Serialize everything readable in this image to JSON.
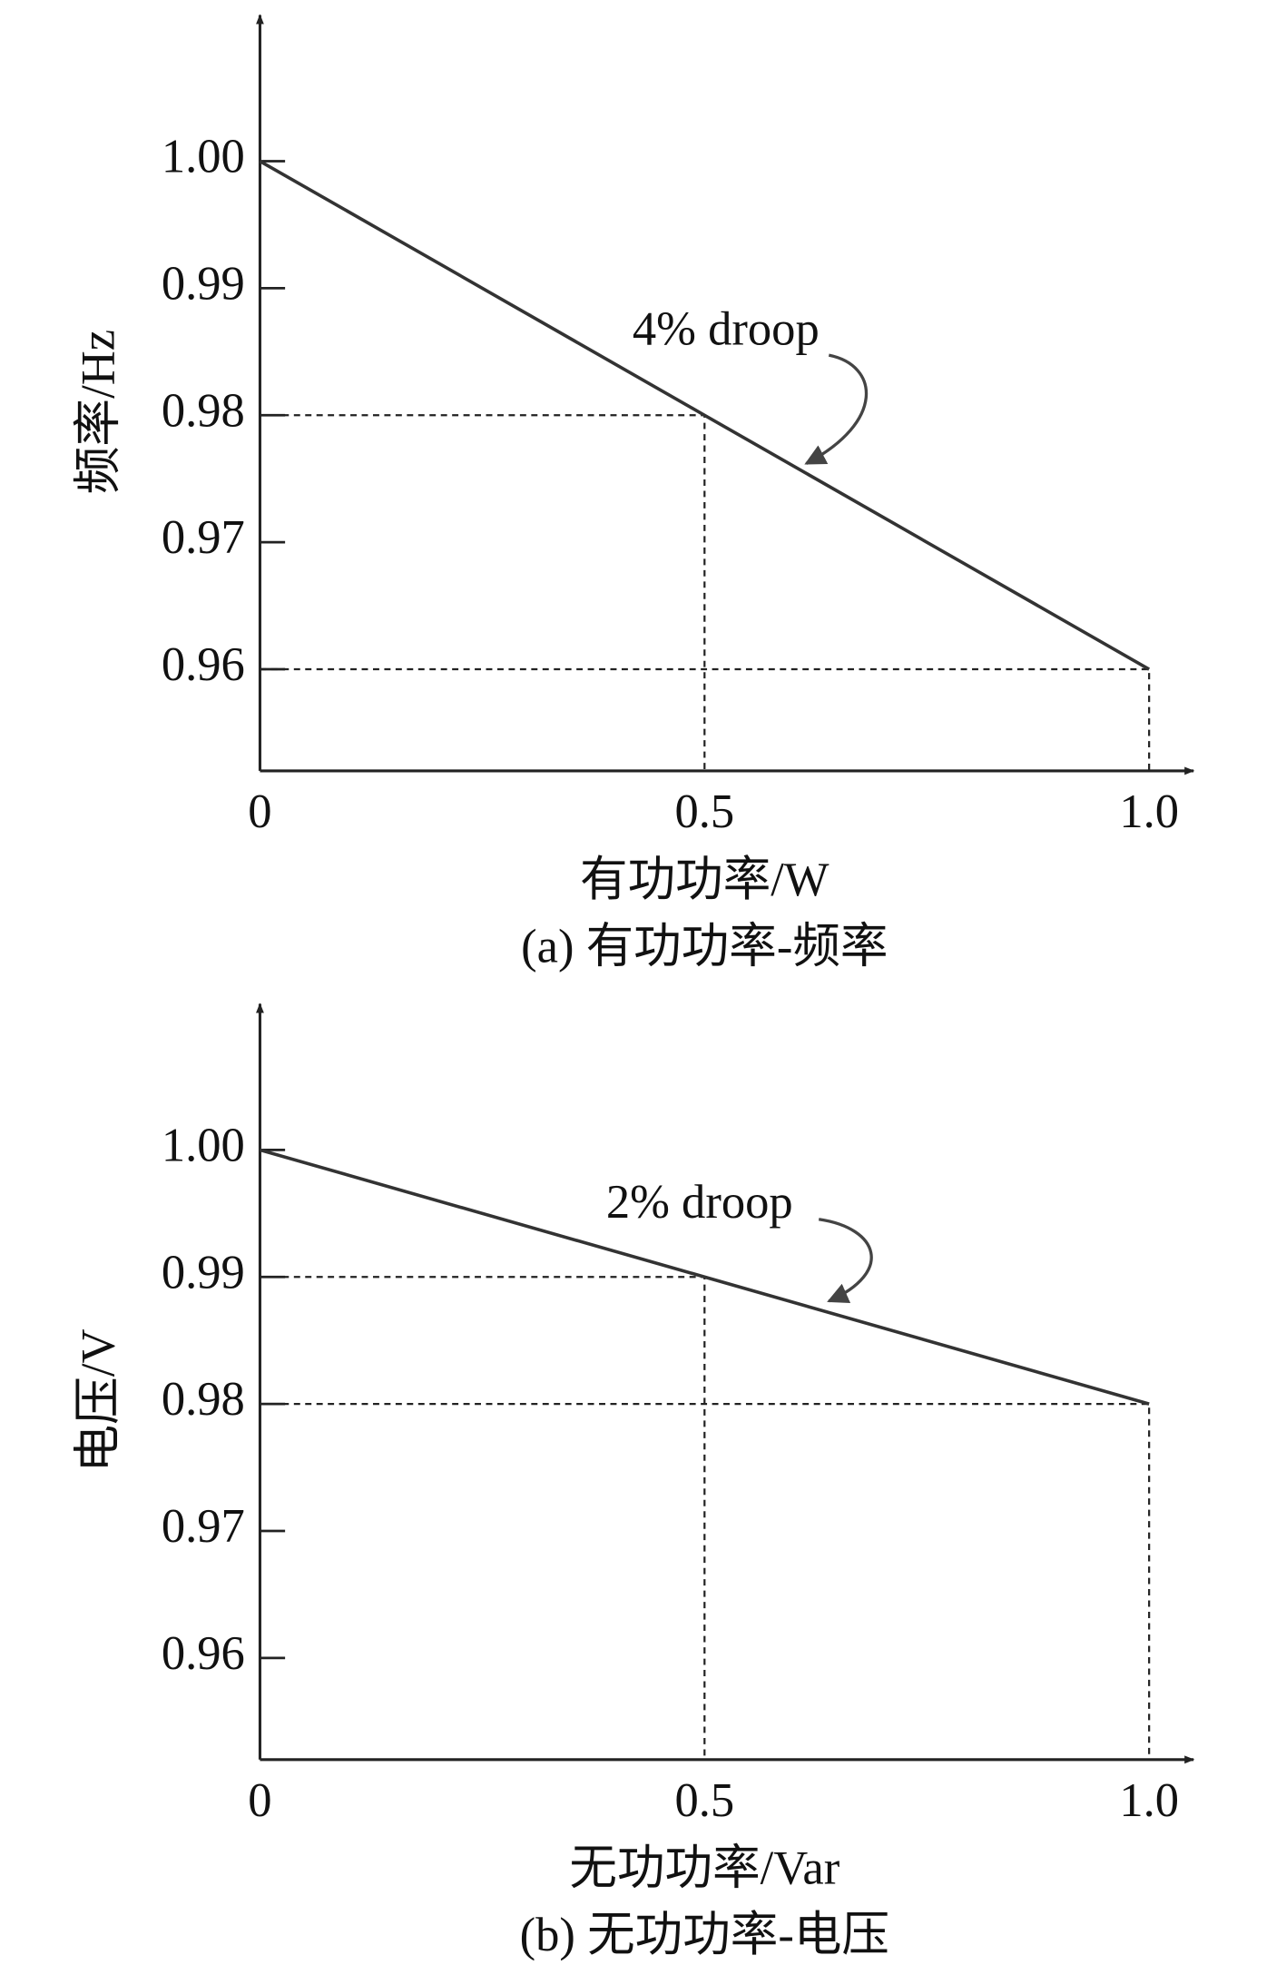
{
  "chart_data": [
    {
      "type": "line",
      "x": [
        0,
        0.5,
        1
      ],
      "values": [
        1,
        0.98,
        0.96
      ],
      "color": "#333333",
      "xlim": [
        0,
        1.05
      ],
      "ylim": [
        0.952,
        1.0115
      ],
      "xticks": [
        0,
        0.5,
        {
          "value": 1,
          "label": "1.0"
        }
      ],
      "yticks": [
        {
          "value": 1,
          "label": "1.00"
        },
        0.99,
        0.98,
        0.97,
        0.96
      ],
      "ylabel": "频率/Hz",
      "xlabel": "有功功率/W",
      "caption": "(a) 有功功率-频率",
      "annotation": "4% droop"
    },
    {
      "type": "line",
      "x": [
        0,
        0.5,
        1
      ],
      "values": [
        1,
        0.99,
        0.98
      ],
      "color": "#333333",
      "xlim": [
        0,
        1.05
      ],
      "ylim": [
        0.952,
        1.0115
      ],
      "xticks": [
        0,
        0.5,
        {
          "value": 1,
          "label": "1.0"
        }
      ],
      "yticks": [
        {
          "value": 1,
          "label": "1.00"
        },
        0.99,
        0.98,
        0.97,
        0.96
      ],
      "ylabel": "电压/V",
      "xlabel": "无功功率/Var",
      "caption": "(b) 无功功率-电压",
      "annotation": "2% droop"
    }
  ]
}
